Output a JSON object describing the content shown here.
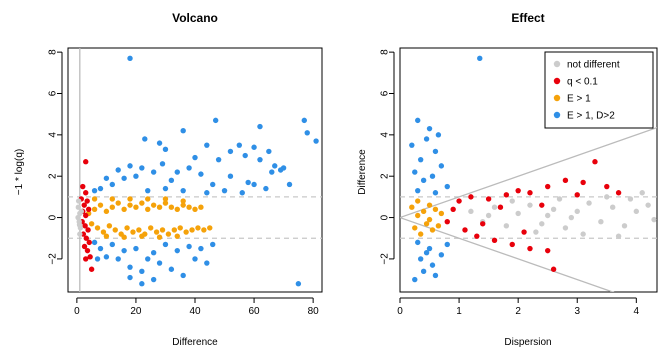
{
  "colors": {
    "not_different": "#cccccc",
    "q": "#e8000b",
    "e1": "#f5a20a",
    "e1d2": "#2f8fe6",
    "ref_line": "#bbbbbb",
    "dash_line": "#c8c8c8"
  },
  "chart_data": [
    {
      "type": "scatter",
      "title": "Volcano",
      "xlabel": "Difference",
      "ylabel": "−1 * log(q)",
      "xlim": [
        -3,
        83
      ],
      "ylim": [
        -3.6,
        8.2
      ],
      "xticks": [
        0,
        20,
        40,
        60,
        80
      ],
      "yticks": [
        -2,
        0,
        2,
        4,
        6,
        8
      ],
      "grid": false,
      "reference_lines": {
        "horizontal_dashed": [
          1,
          -1
        ],
        "vertical_solid": [
          1
        ]
      },
      "series": [
        {
          "key": "e1d2",
          "points": [
            [
              18,
              7.7
            ],
            [
              47,
              4.7
            ],
            [
              36,
              4.2
            ],
            [
              62,
              4.4
            ],
            [
              77,
              4.7
            ],
            [
              78,
              4.1
            ],
            [
              81,
              3.7
            ],
            [
              23,
              3.8
            ],
            [
              30,
              3.3
            ],
            [
              28,
              3.6
            ],
            [
              44,
              3.5
            ],
            [
              52,
              3.2
            ],
            [
              55,
              3.5
            ],
            [
              60,
              3.4
            ],
            [
              65,
              3.2
            ],
            [
              40,
              2.9
            ],
            [
              48,
              2.8
            ],
            [
              57,
              3.0
            ],
            [
              62,
              2.8
            ],
            [
              67,
              2.5
            ],
            [
              70,
              2.4
            ],
            [
              72,
              1.6
            ],
            [
              64,
              1.4
            ],
            [
              58,
              1.7
            ],
            [
              52,
              2.0
            ],
            [
              46,
              1.6
            ],
            [
              42,
              2.1
            ],
            [
              38,
              2.4
            ],
            [
              34,
              2.2
            ],
            [
              32,
              1.8
            ],
            [
              29,
              2.6
            ],
            [
              26,
              2.2
            ],
            [
              22,
              2.4
            ],
            [
              20,
              2.0
            ],
            [
              18,
              2.5
            ],
            [
              16,
              1.9
            ],
            [
              14,
              2.3
            ],
            [
              12,
              1.6
            ],
            [
              10,
              1.9
            ],
            [
              8,
              1.4
            ],
            [
              6,
              1.3
            ],
            [
              24,
              1.3
            ],
            [
              30,
              1.4
            ],
            [
              36,
              1.3
            ],
            [
              44,
              1.2
            ],
            [
              50,
              1.3
            ],
            [
              56,
              1.2
            ],
            [
              60,
              1.6
            ],
            [
              66,
              2.2
            ],
            [
              69,
              2.3
            ],
            [
              8,
              -1.5
            ],
            [
              10,
              -1.9
            ],
            [
              12,
              -1.3
            ],
            [
              14,
              -2.0
            ],
            [
              16,
              -1.6
            ],
            [
              18,
              -2.4
            ],
            [
              20,
              -1.5
            ],
            [
              22,
              -2.6
            ],
            [
              24,
              -2.0
            ],
            [
              26,
              -1.7
            ],
            [
              28,
              -2.2
            ],
            [
              30,
              -1.3
            ],
            [
              32,
              -2.5
            ],
            [
              34,
              -1.6
            ],
            [
              36,
              -2.8
            ],
            [
              38,
              -1.4
            ],
            [
              40,
              -2.0
            ],
            [
              42,
              -1.5
            ],
            [
              44,
              -2.2
            ],
            [
              46,
              -1.3
            ],
            [
              22,
              -3.2
            ],
            [
              26,
              -3.0
            ],
            [
              18,
              -2.9
            ],
            [
              75,
              -3.2
            ],
            [
              6,
              -1.2
            ],
            [
              7,
              -2.0
            ]
          ]
        },
        {
          "key": "e1",
          "points": [
            [
              4,
              0.2
            ],
            [
              6,
              0.4
            ],
            [
              8,
              0.6
            ],
            [
              10,
              0.3
            ],
            [
              12,
              0.5
            ],
            [
              14,
              0.7
            ],
            [
              16,
              0.4
            ],
            [
              18,
              0.6
            ],
            [
              20,
              0.5
            ],
            [
              22,
              0.7
            ],
            [
              24,
              0.4
            ],
            [
              26,
              0.6
            ],
            [
              28,
              0.5
            ],
            [
              30,
              0.7
            ],
            [
              32,
              0.5
            ],
            [
              34,
              0.4
            ],
            [
              36,
              0.6
            ],
            [
              38,
              0.5
            ],
            [
              40,
              0.4
            ],
            [
              42,
              0.5
            ],
            [
              5,
              -0.3
            ],
            [
              7,
              -0.5
            ],
            [
              9,
              -0.7
            ],
            [
              11,
              -0.4
            ],
            [
              13,
              -0.6
            ],
            [
              15,
              -0.8
            ],
            [
              17,
              -0.5
            ],
            [
              19,
              -0.7
            ],
            [
              21,
              -0.6
            ],
            [
              23,
              -0.8
            ],
            [
              25,
              -0.5
            ],
            [
              27,
              -0.7
            ],
            [
              29,
              -0.6
            ],
            [
              31,
              -0.8
            ],
            [
              33,
              -0.6
            ],
            [
              35,
              -0.5
            ],
            [
              37,
              -0.7
            ],
            [
              39,
              -0.6
            ],
            [
              41,
              -0.5
            ],
            [
              43,
              -0.6
            ],
            [
              45,
              -0.5
            ],
            [
              6,
              0.9
            ],
            [
              12,
              0.9
            ],
            [
              18,
              0.9
            ],
            [
              24,
              0.9
            ],
            [
              30,
              0.9
            ],
            [
              36,
              0.8
            ],
            [
              10,
              -0.9
            ],
            [
              16,
              -0.95
            ],
            [
              22,
              -0.9
            ],
            [
              28,
              -0.95
            ],
            [
              34,
              -0.9
            ]
          ]
        },
        {
          "key": "q",
          "points": [
            [
              3,
              2.7
            ],
            [
              2,
              1.5
            ],
            [
              3,
              1.2
            ],
            [
              1.5,
              0.9
            ],
            [
              2.5,
              0.6
            ],
            [
              3.5,
              0.8
            ],
            [
              4,
              0.4
            ],
            [
              2,
              0.3
            ],
            [
              3,
              0.1
            ],
            [
              1.8,
              -0.2
            ],
            [
              2.8,
              -0.4
            ],
            [
              3.8,
              -0.6
            ],
            [
              2.2,
              -0.8
            ],
            [
              3.2,
              -1.0
            ],
            [
              4.2,
              -1.2
            ],
            [
              2.6,
              -1.4
            ],
            [
              3.6,
              -1.6
            ],
            [
              4.5,
              -1.9
            ],
            [
              5,
              -2.5
            ],
            [
              3,
              -2.0
            ]
          ]
        },
        {
          "key": "not_different",
          "points": [
            [
              0.5,
              0.5
            ],
            [
              1,
              0.2
            ],
            [
              0.8,
              -0.2
            ],
            [
              1.2,
              -0.5
            ],
            [
              0.6,
              0.8
            ],
            [
              1,
              -0.8
            ],
            [
              0.4,
              0.0
            ],
            [
              1.5,
              0.3
            ],
            [
              0.9,
              -0.35
            ]
          ]
        }
      ]
    },
    {
      "type": "scatter",
      "title": "Effect",
      "xlabel": "Dispersion",
      "ylabel": "Difference",
      "xlim": [
        0,
        4.35
      ],
      "ylim": [
        -3.6,
        8.2
      ],
      "xticks": [
        0,
        1,
        2,
        3,
        4
      ],
      "yticks": [
        -2,
        0,
        2,
        4,
        6,
        8
      ],
      "grid": false,
      "legend": {
        "placement": "top-right",
        "entries": [
          {
            "label": "not different",
            "key": "not_different"
          },
          {
            "label": "q < 0.1",
            "key": "q"
          },
          {
            "label": "E > 1",
            "key": "e1"
          },
          {
            "label": "E > 1, D>2",
            "key": "e1d2"
          }
        ]
      },
      "reference_lines": {
        "horizontal_dashed": [
          1,
          -1
        ],
        "diagonal_slopes": [
          1,
          -1
        ]
      },
      "series": [
        {
          "key": "not_different",
          "points": [
            [
              1.2,
              0.3
            ],
            [
              1.4,
              -0.2
            ],
            [
              1.6,
              0.5
            ],
            [
              1.8,
              -0.4
            ],
            [
              2.0,
              0.2
            ],
            [
              2.2,
              0.6
            ],
            [
              2.4,
              -0.3
            ],
            [
              2.6,
              0.4
            ],
            [
              2.8,
              -0.5
            ],
            [
              3.0,
              0.3
            ],
            [
              3.2,
              0.7
            ],
            [
              3.4,
              -0.2
            ],
            [
              3.6,
              0.5
            ],
            [
              3.8,
              -0.4
            ],
            [
              4.0,
              0.3
            ],
            [
              4.2,
              0.6
            ],
            [
              4.3,
              -0.1
            ],
            [
              3.9,
              0.9
            ],
            [
              3.5,
              1.0
            ],
            [
              3.1,
              -0.8
            ],
            [
              2.7,
              0.9
            ],
            [
              2.3,
              -0.7
            ],
            [
              1.9,
              0.8
            ],
            [
              1.5,
              0.1
            ],
            [
              4.1,
              1.2
            ],
            [
              3.7,
              -0.9
            ],
            [
              2.9,
              0.0
            ],
            [
              2.5,
              0.1
            ]
          ]
        },
        {
          "key": "e1d2",
          "points": [
            [
              1.35,
              7.7
            ],
            [
              0.3,
              4.7
            ],
            [
              0.5,
              4.3
            ],
            [
              0.2,
              3.5
            ],
            [
              0.6,
              3.2
            ],
            [
              0.35,
              2.8
            ],
            [
              0.7,
              2.5
            ],
            [
              0.25,
              2.2
            ],
            [
              0.55,
              2.0
            ],
            [
              0.4,
              1.8
            ],
            [
              0.8,
              1.5
            ],
            [
              0.3,
              1.3
            ],
            [
              0.6,
              1.2
            ],
            [
              0.45,
              3.8
            ],
            [
              0.65,
              4.0
            ],
            [
              0.3,
              -1.2
            ],
            [
              0.5,
              -1.5
            ],
            [
              0.7,
              -1.8
            ],
            [
              0.35,
              -2.0
            ],
            [
              0.55,
              -2.3
            ],
            [
              0.4,
              -2.6
            ],
            [
              0.25,
              -3.0
            ],
            [
              0.6,
              -2.8
            ],
            [
              0.8,
              -1.3
            ],
            [
              0.45,
              -1.7
            ]
          ]
        },
        {
          "key": "e1",
          "points": [
            [
              0.2,
              0.5
            ],
            [
              0.3,
              0.8
            ],
            [
              0.4,
              0.3
            ],
            [
              0.5,
              0.6
            ],
            [
              0.6,
              0.4
            ],
            [
              0.25,
              -0.5
            ],
            [
              0.35,
              -0.8
            ],
            [
              0.45,
              -0.3
            ],
            [
              0.55,
              -0.6
            ],
            [
              0.65,
              -0.4
            ],
            [
              0.3,
              0.1
            ],
            [
              0.5,
              -0.1
            ],
            [
              0.7,
              0.2
            ]
          ]
        },
        {
          "key": "q",
          "points": [
            [
              1.0,
              0.8
            ],
            [
              1.2,
              1.0
            ],
            [
              1.5,
              0.9
            ],
            [
              1.8,
              1.1
            ],
            [
              2.0,
              1.3
            ],
            [
              2.2,
              1.2
            ],
            [
              2.5,
              1.5
            ],
            [
              2.8,
              1.8
            ],
            [
              3.1,
              1.7
            ],
            [
              3.3,
              2.7
            ],
            [
              3.5,
              1.5
            ],
            [
              3.7,
              1.2
            ],
            [
              1.1,
              -0.6
            ],
            [
              1.3,
              -0.9
            ],
            [
              1.6,
              -1.1
            ],
            [
              1.9,
              -1.3
            ],
            [
              2.2,
              -1.5
            ],
            [
              2.5,
              -1.6
            ],
            [
              2.6,
              -2.5
            ],
            [
              0.9,
              0.4
            ],
            [
              1.4,
              -0.3
            ],
            [
              1.7,
              0.5
            ],
            [
              2.1,
              -0.7
            ],
            [
              2.4,
              0.6
            ],
            [
              0.8,
              -0.2
            ],
            [
              3.0,
              1.1
            ]
          ]
        }
      ]
    }
  ]
}
